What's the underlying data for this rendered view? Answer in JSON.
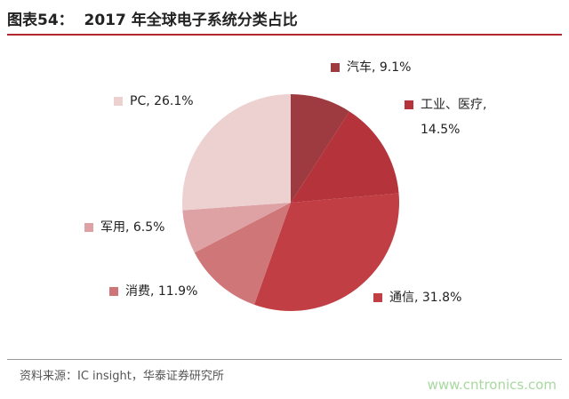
{
  "chart_data": {
    "type": "pie",
    "title": "图表54：  2017 年全球电子系统分类占比",
    "values": [
      9.1,
      14.5,
      31.8,
      11.9,
      6.5,
      26.1
    ],
    "value_labels": [
      "汽车, 9.1%",
      "工业、医疗, 14.5%",
      "通信, 31.8%",
      "消费, 11.9%",
      "军用, 6.5%",
      "PC, 26.1%"
    ],
    "colors": [
      "#9e3b40",
      "#b5333b",
      "#c13e44",
      "#cf7679",
      "#dea2a4",
      "#edd1d1"
    ],
    "source": "资料来源：IC insight，华泰证券研究所",
    "watermark": "www.cntronics.com"
  }
}
